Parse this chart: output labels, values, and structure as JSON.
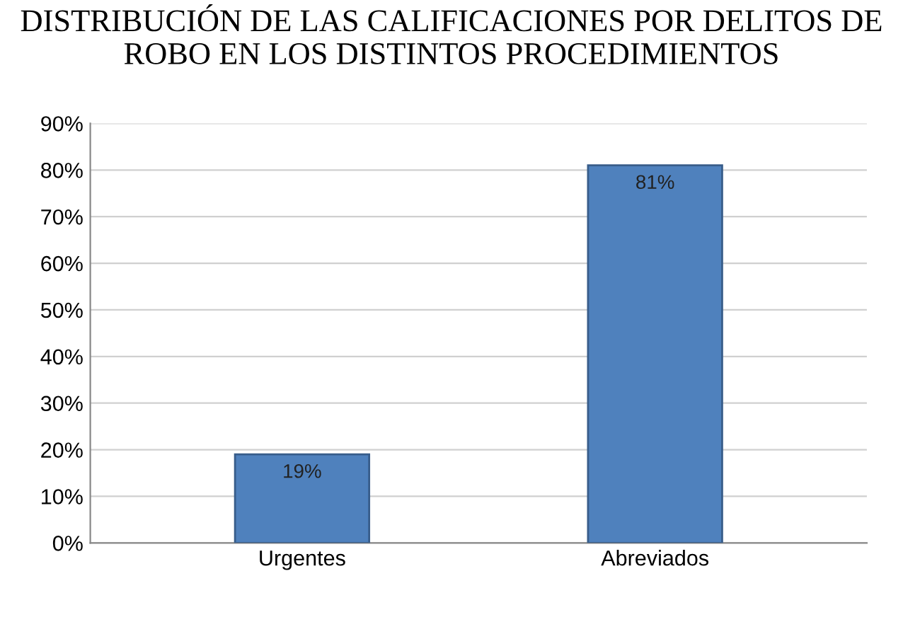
{
  "chart_data": {
    "type": "bar",
    "title": "DISTRIBUCIÓN DE LAS CALIFICACIONES POR DELITOS DE ROBO EN LOS DISTINTOS PROCEDIMIENTOS",
    "categories": [
      "Urgentes",
      "Abreviados"
    ],
    "values": [
      19,
      81
    ],
    "value_labels": [
      "19%",
      "81%"
    ],
    "color": "#4f81bd",
    "ylim": [
      0,
      90
    ],
    "yticks": [
      {
        "value": 0,
        "label": "0%"
      },
      {
        "value": 10,
        "label": "10%"
      },
      {
        "value": 20,
        "label": "20%"
      },
      {
        "value": 30,
        "label": "30%"
      },
      {
        "value": 40,
        "label": "40%"
      },
      {
        "value": 50,
        "label": "50%"
      },
      {
        "value": 60,
        "label": "60%"
      },
      {
        "value": 70,
        "label": "70%"
      },
      {
        "value": 80,
        "label": "80%"
      },
      {
        "value": 90,
        "label": "90%"
      }
    ],
    "grid": "y",
    "legend": false
  }
}
